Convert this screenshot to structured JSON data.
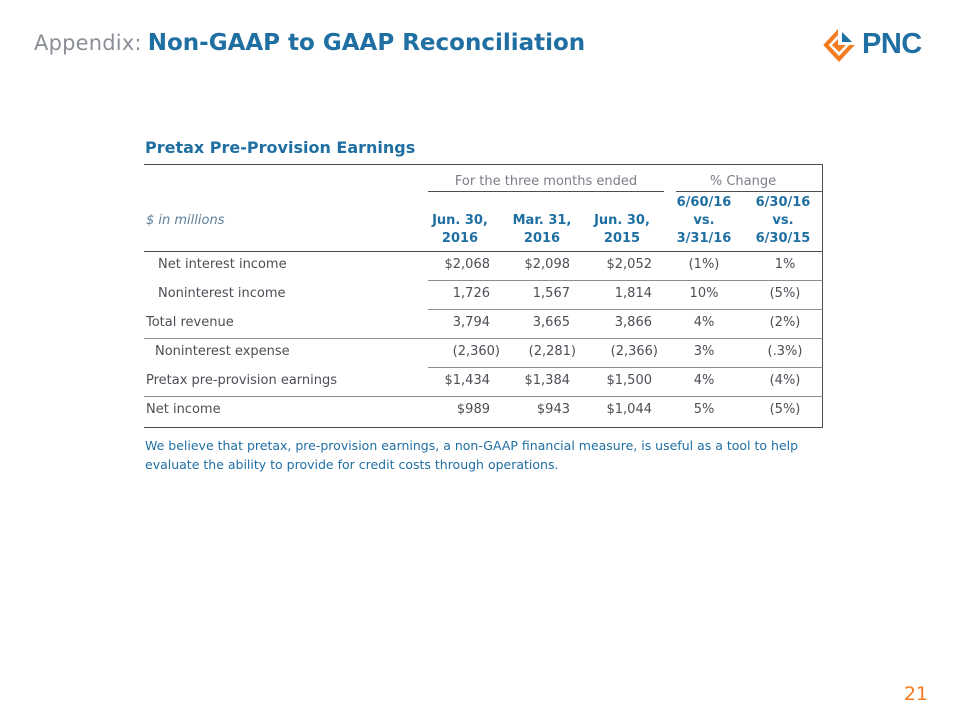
{
  "header": {
    "prefix": "Appendix:",
    "title": "Non-GAAP to GAAP Reconciliation",
    "logo_text": "PNC"
  },
  "section_title": "Pretax Pre-Provision Earnings",
  "table": {
    "group_headers": {
      "three_months": "For the three months ended",
      "pct_change": "% Change"
    },
    "units_label": "$ in millions",
    "columns": [
      {
        "line1": "Jun. 30,",
        "line2": "2016"
      },
      {
        "line1": "Mar. 31,",
        "line2": "2016"
      },
      {
        "line1": "Jun. 30,",
        "line2": "2015"
      },
      {
        "line1": "6/60/16",
        "line2": "vs.",
        "line3": "3/31/16"
      },
      {
        "line1": "6/30/16",
        "line2": "vs.",
        "line3": "6/30/15"
      }
    ],
    "rows": [
      {
        "label": "Net interest income",
        "values": [
          "$2,068",
          "$2,098",
          "$2,052",
          "(1%)",
          "1%"
        ]
      },
      {
        "label": "Noninterest income",
        "values": [
          "1,726",
          "1,567",
          "1,814",
          "10%",
          "(5%)"
        ]
      },
      {
        "label": "Total revenue",
        "values": [
          "3,794",
          "3,665",
          "3,866",
          "4%",
          "(2%)"
        ]
      },
      {
        "label": "Noninterest expense",
        "values": [
          "(2,360)",
          "(2,281)",
          "(2,366)",
          "3%",
          "(.3%)"
        ]
      },
      {
        "label": "Pretax pre-provision earnings",
        "values": [
          "$1,434",
          "$1,384",
          "$1,500",
          "4%",
          "(4%)"
        ]
      },
      {
        "label": "Net income",
        "values": [
          "$989",
          "$943",
          "$1,044",
          "5%",
          "(5%)"
        ]
      }
    ]
  },
  "footnote": "We believe that pretax, pre-provision earnings, a non-GAAP financial measure, is useful as a tool to help evaluate the ability to provide for credit costs through operations.",
  "page_number": "21",
  "colors": {
    "brand_blue": "#1f6fa3",
    "brand_orange": "#f47b20",
    "text_gray": "#4b4f55"
  }
}
